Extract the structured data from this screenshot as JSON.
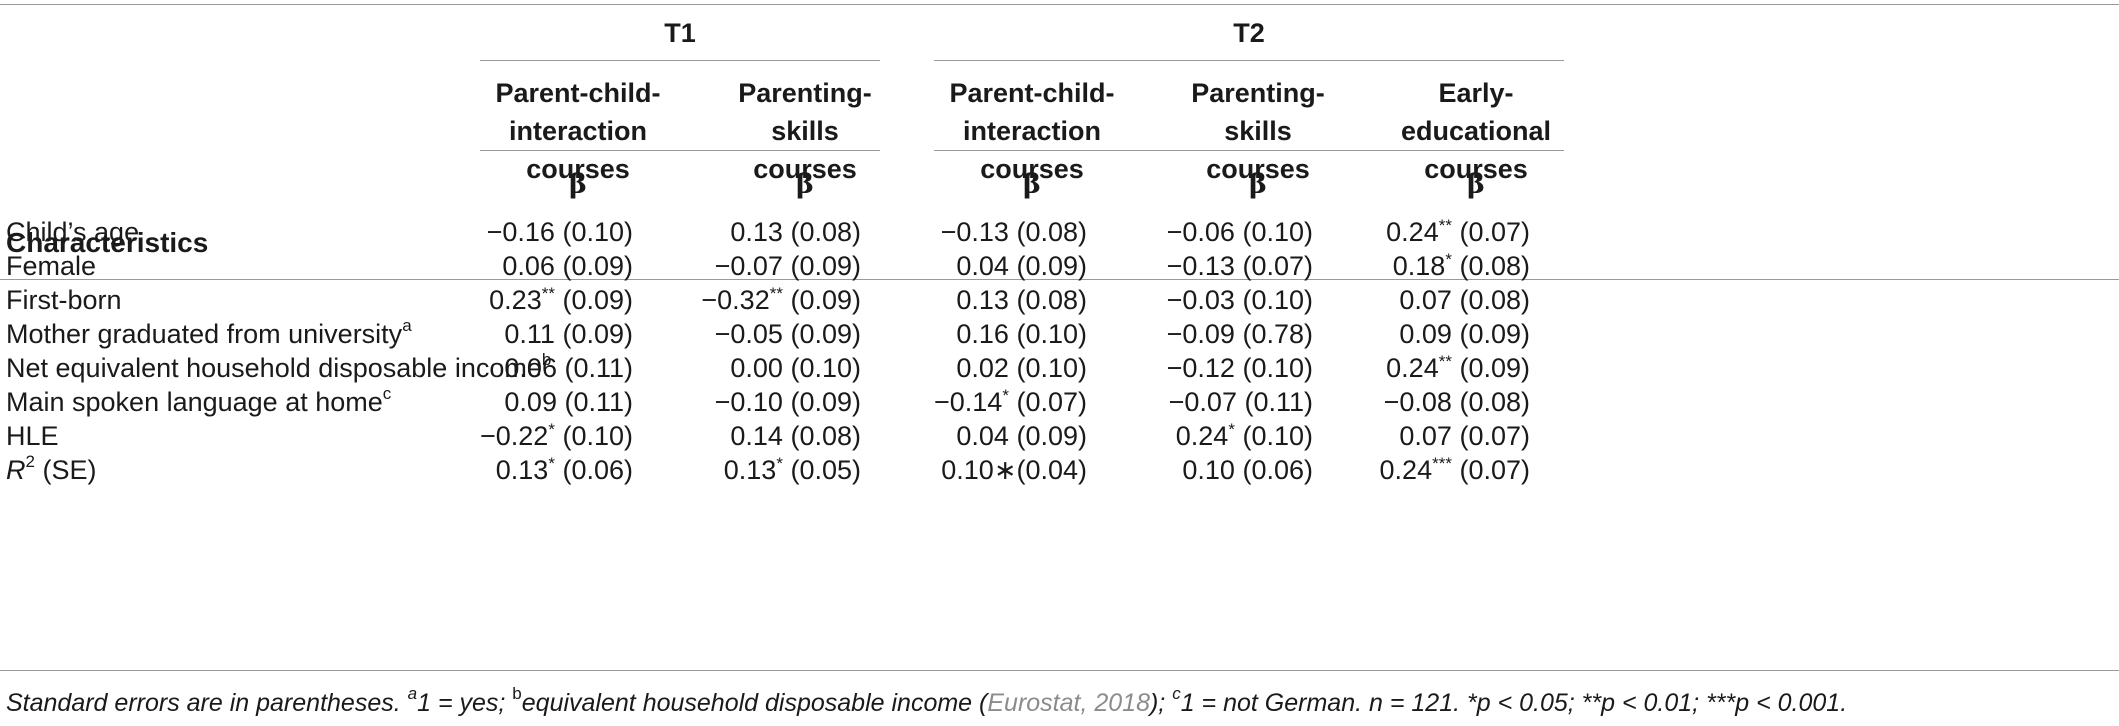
{
  "groups": {
    "t1": "T1",
    "t2": "T2"
  },
  "columns": [
    {
      "line1": "Parent-child-",
      "line2": "interaction courses",
      "stat": "β"
    },
    {
      "line1": "Parenting-skills",
      "line2": "courses",
      "stat": "β"
    },
    {
      "line1": "Parent-child-",
      "line2": "interaction courses",
      "stat": "β"
    },
    {
      "line1": "Parenting-skills",
      "line2": "courses",
      "stat": "β"
    },
    {
      "line1": "Early-educational",
      "line2": "courses",
      "stat": "β"
    }
  ],
  "characteristics_header": "Characteristics",
  "rows": [
    {
      "label": "Child’s age",
      "label_sup": "",
      "cells": [
        {
          "coef": "−0.16",
          "stars": "",
          "se": " (0.10)"
        },
        {
          "coef": "0.13",
          "stars": "",
          "se": " (0.08)"
        },
        {
          "coef": "−0.13",
          "stars": "",
          "se": " (0.08)"
        },
        {
          "coef": "−0.06",
          "stars": "",
          "se": " (0.10)"
        },
        {
          "coef": "0.24",
          "stars": "**",
          "se": " (0.07)"
        }
      ]
    },
    {
      "label": "Female",
      "label_sup": "",
      "cells": [
        {
          "coef": "0.06",
          "stars": "",
          "se": " (0.09)"
        },
        {
          "coef": "−0.07",
          "stars": "",
          "se": " (0.09)"
        },
        {
          "coef": "0.04",
          "stars": "",
          "se": " (0.09)"
        },
        {
          "coef": "−0.13",
          "stars": "",
          "se": " (0.07)"
        },
        {
          "coef": "0.18",
          "stars": "*",
          "se": " (0.08)"
        }
      ]
    },
    {
      "label": "First-born",
      "label_sup": "",
      "cells": [
        {
          "coef": "0.23",
          "stars": "**",
          "se": " (0.09)"
        },
        {
          "coef": "−0.32",
          "stars": "**",
          "se": " (0.09)"
        },
        {
          "coef": "0.13",
          "stars": "",
          "se": " (0.08)"
        },
        {
          "coef": "−0.03",
          "stars": "",
          "se": " (0.10)"
        },
        {
          "coef": "0.07",
          "stars": "",
          "se": " (0.08)"
        }
      ]
    },
    {
      "label": "Mother graduated from university",
      "label_sup": "a",
      "cells": [
        {
          "coef": "0.11",
          "stars": "",
          "se": " (0.09)"
        },
        {
          "coef": "−0.05",
          "stars": "",
          "se": " (0.09)"
        },
        {
          "coef": "0.16",
          "stars": "",
          "se": " (0.10)"
        },
        {
          "coef": "−0.09",
          "stars": "",
          "se": " (0.78)"
        },
        {
          "coef": "0.09",
          "stars": "",
          "se": " (0.09)"
        }
      ]
    },
    {
      "label": "Net equivalent household disposable income",
      "label_sup": "b",
      "cells": [
        {
          "coef": "0.06",
          "stars": "",
          "se": " (0.11)"
        },
        {
          "coef": "0.00",
          "stars": "",
          "se": " (0.10)"
        },
        {
          "coef": "0.02",
          "stars": "",
          "se": " (0.10)"
        },
        {
          "coef": "−0.12",
          "stars": "",
          "se": " (0.10)"
        },
        {
          "coef": "0.24",
          "stars": "**",
          "se": " (0.09)"
        }
      ]
    },
    {
      "label": "Main spoken language at home",
      "label_sup": "c",
      "cells": [
        {
          "coef": "0.09",
          "stars": "",
          "se": " (0.11)"
        },
        {
          "coef": "−0.10",
          "stars": "",
          "se": " (0.09)"
        },
        {
          "coef": "−0.14",
          "stars": "*",
          "se": " (0.07)"
        },
        {
          "coef": "−0.07",
          "stars": "",
          "se": " (0.11)"
        },
        {
          "coef": "−0.08",
          "stars": "",
          "se": " (0.08)"
        }
      ]
    },
    {
      "label": "HLE",
      "label_sup": "",
      "cells": [
        {
          "coef": "−0.22",
          "stars": "*",
          "se": " (0.10)"
        },
        {
          "coef": "0.14",
          "stars": "",
          "se": " (0.08)"
        },
        {
          "coef": "0.04",
          "stars": "",
          "se": " (0.09)"
        },
        {
          "coef": "0.24",
          "stars": "*",
          "se": " (0.10)"
        },
        {
          "coef": "0.07",
          "stars": "",
          "se": " (0.07)"
        }
      ]
    }
  ],
  "r2_row": {
    "label_r": "R",
    "label_sup": "2",
    "label_rest": " (SE)",
    "cells": [
      {
        "coef": "0.13",
        "stars": "*",
        "se": " (0.06)"
      },
      {
        "coef": "0.13",
        "stars": "*",
        "se": " (0.05)"
      },
      {
        "coef": "0.10∗",
        "stars": "",
        "se": "(0.04)"
      },
      {
        "coef": "0.10",
        "stars": "",
        "se": " (0.06)"
      },
      {
        "coef": "0.24",
        "stars": "***",
        "se": " (0.07)"
      }
    ]
  },
  "footnote": {
    "part1": "Standard errors are in parentheses. ",
    "sup_a": "a",
    "part2": "1 = yes; ",
    "sup_b": "b",
    "part3": "equivalent household disposable income (",
    "citation": "Eurostat, 2018",
    "part4": "); ",
    "sup_c": "c",
    "part5": "1 = not German. n = 121. *p < 0.05; **p < 0.01; ***p < 0.001."
  }
}
